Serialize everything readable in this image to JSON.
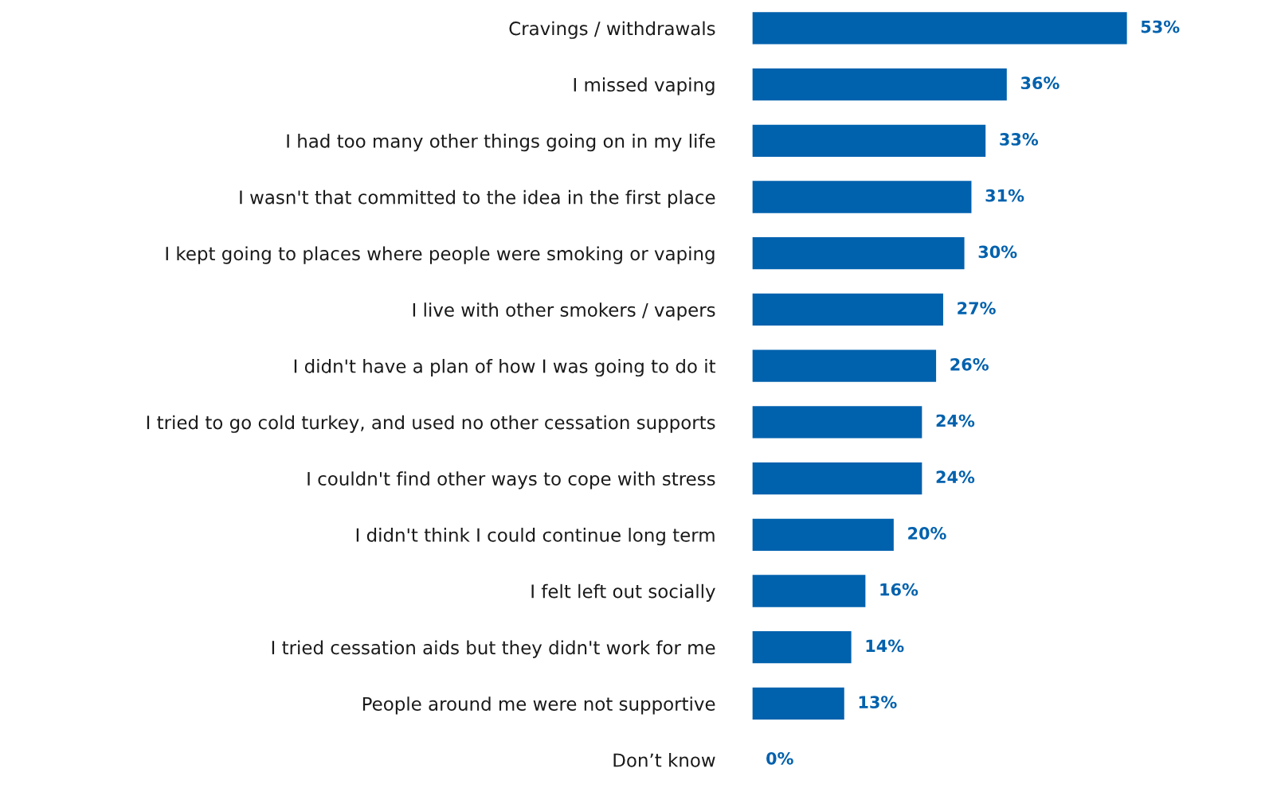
{
  "chart_data": {
    "type": "bar",
    "orientation": "horizontal",
    "categories": [
      "Cravings / withdrawals",
      "I missed vaping",
      "I had too many other things going on in my life",
      "I wasn't that committed to the idea in the first place",
      "I kept going to places where people were smoking or vaping",
      "I live with other smokers / vapers",
      "I didn't have a plan of how I was going to do it",
      "I tried to go cold turkey, and used no other cessation supports",
      "I couldn't find other ways to cope with stress",
      "I didn't think I could continue long term",
      "I felt left out socially",
      "I tried cessation aids but they didn't work for me",
      "People around me were not supportive",
      "Don’t know"
    ],
    "values": [
      53,
      36,
      33,
      31,
      30,
      27,
      26,
      24,
      24,
      20,
      16,
      14,
      13,
      0
    ],
    "value_labels": [
      "53%",
      "36%",
      "33%",
      "31%",
      "30%",
      "27%",
      "26%",
      "24%",
      "24%",
      "20%",
      "16%",
      "14%",
      "13%",
      "0%"
    ],
    "color": "#0061ad",
    "grid": false,
    "legend": false
  }
}
